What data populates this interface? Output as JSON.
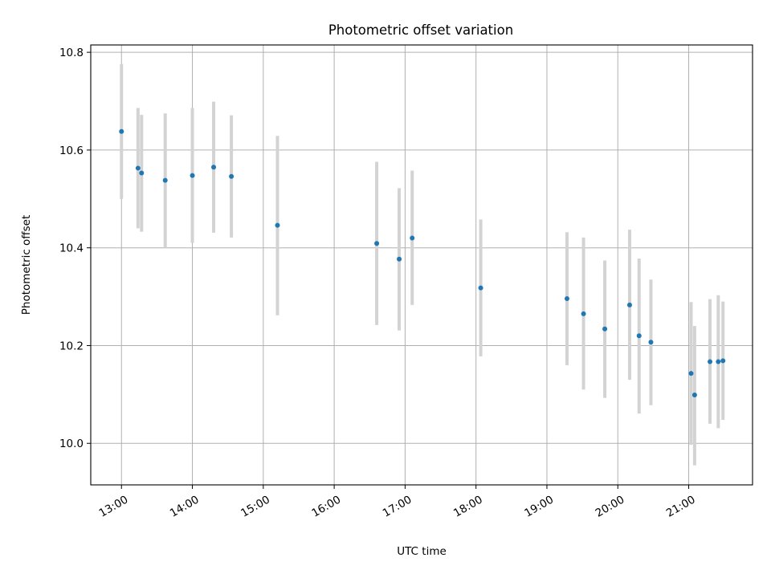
{
  "chart_data": {
    "type": "scatter",
    "title": "Photometric offset variation",
    "xlabel": "UTC time",
    "ylabel": "Photometric offset",
    "xlim": [
      "12:34",
      "21:54"
    ],
    "ylim": [
      9.915,
      10.815
    ],
    "x_ticks": [
      "13:00",
      "14:00",
      "15:00",
      "16:00",
      "17:00",
      "18:00",
      "19:00",
      "20:00",
      "21:00"
    ],
    "y_ticks": [
      "10.0",
      "10.2",
      "10.4",
      "10.6",
      "10.8"
    ],
    "grid": true,
    "legend": "none",
    "marker_color": "#1f77b4",
    "errorbar_color": "#d3d3d3",
    "points": [
      {
        "time": "13:00",
        "y": 10.638,
        "y_low": 10.5,
        "y_high": 10.776
      },
      {
        "time": "13:14",
        "y": 10.563,
        "y_low": 10.44,
        "y_high": 10.686
      },
      {
        "time": "13:17",
        "y": 10.553,
        "y_low": 10.433,
        "y_high": 10.672
      },
      {
        "time": "13:37",
        "y": 10.538,
        "y_low": 10.4,
        "y_high": 10.675
      },
      {
        "time": "14:00",
        "y": 10.548,
        "y_low": 10.41,
        "y_high": 10.686
      },
      {
        "time": "14:18",
        "y": 10.565,
        "y_low": 10.431,
        "y_high": 10.699
      },
      {
        "time": "14:33",
        "y": 10.546,
        "y_low": 10.421,
        "y_high": 10.671
      },
      {
        "time": "15:12",
        "y": 10.446,
        "y_low": 10.262,
        "y_high": 10.629
      },
      {
        "time": "16:36",
        "y": 10.409,
        "y_low": 10.242,
        "y_high": 10.576
      },
      {
        "time": "16:55",
        "y": 10.377,
        "y_low": 10.231,
        "y_high": 10.522
      },
      {
        "time": "17:06",
        "y": 10.42,
        "y_low": 10.283,
        "y_high": 10.558
      },
      {
        "time": "18:04",
        "y": 10.318,
        "y_low": 10.178,
        "y_high": 10.458
      },
      {
        "time": "19:17",
        "y": 10.296,
        "y_low": 10.16,
        "y_high": 10.432
      },
      {
        "time": "19:31",
        "y": 10.265,
        "y_low": 10.11,
        "y_high": 10.421
      },
      {
        "time": "19:49",
        "y": 10.234,
        "y_low": 10.093,
        "y_high": 10.374
      },
      {
        "time": "20:10",
        "y": 10.283,
        "y_low": 10.13,
        "y_high": 10.437
      },
      {
        "time": "20:18",
        "y": 10.22,
        "y_low": 10.061,
        "y_high": 10.378
      },
      {
        "time": "20:28",
        "y": 10.207,
        "y_low": 10.078,
        "y_high": 10.335
      },
      {
        "time": "21:02",
        "y": 10.143,
        "y_low": 9.997,
        "y_high": 10.289
      },
      {
        "time": "21:05",
        "y": 10.099,
        "y_low": 9.955,
        "y_high": 10.24
      },
      {
        "time": "21:18",
        "y": 10.167,
        "y_low": 10.04,
        "y_high": 10.295
      },
      {
        "time": "21:25",
        "y": 10.167,
        "y_low": 10.031,
        "y_high": 10.303
      },
      {
        "time": "21:29",
        "y": 10.169,
        "y_low": 10.048,
        "y_high": 10.29
      }
    ]
  }
}
